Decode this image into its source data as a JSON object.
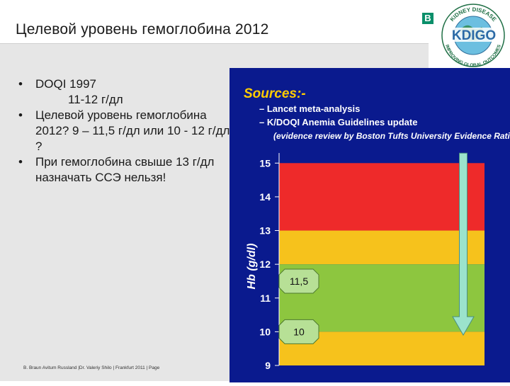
{
  "slide": {
    "title": "Целевой уровень гемоглобина 2012",
    "logo_b": "B",
    "kdigo": {
      "ring_top": "KIDNEY DISEASE",
      "ring_bottom": "IMPROVING GLOBAL OUTCOMES",
      "wordmark": "KDIGO"
    },
    "bullets": [
      {
        "marker": "•",
        "text": "DOQI  1997"
      },
      {
        "marker": "",
        "text": "11-12 г/дл"
      },
      {
        "marker": "•",
        "text": " Целевой уровень гемоглобина 2012?     9 – 11,5 г/дл или  10 - 12  г/дл ?"
      },
      {
        "marker": "•",
        "text": " При гемоглобина свыше 13 г/дл назначать ССЭ нельзя!"
      }
    ],
    "footer": "B. Braun Avitum Russland  |Dr. Valeriy Shilo | Frankfurt 2011 | Page"
  },
  "chart_data": {
    "type": "bar",
    "sources_title": "Sources:-",
    "sources": [
      "– Lancet meta-analysis",
      "– K/DOQI Anemia Guidelines update",
      "(evidence review by Boston Tufts University Evidence Rating Group)"
    ],
    "ylabel": "Hb (g/dl)",
    "ylim": [
      9,
      15.3
    ],
    "yticks": [
      9,
      10,
      11,
      12,
      13,
      14,
      15
    ],
    "bands": [
      {
        "from": 13,
        "to": 15,
        "color": "#ee2a2a"
      },
      {
        "from": 12,
        "to": 13,
        "color": "#f6c21c"
      },
      {
        "from": 10,
        "to": 12,
        "color": "#8dc63f"
      },
      {
        "from": 9,
        "to": 10,
        "color": "#f6c21c"
      }
    ],
    "markers": [
      {
        "label": "11,5",
        "value": 11.5
      },
      {
        "label": "10",
        "value": 10
      }
    ],
    "arrow": {
      "from": 15,
      "to": 9.9
    },
    "colors": {
      "background": "#0a1a8e",
      "sources_title": "#ffcc00",
      "sources_text": "#ffffff",
      "axis": "#ffffff",
      "marker_fill": "#b7e096",
      "arrow_fill": "#9be3cc"
    }
  }
}
